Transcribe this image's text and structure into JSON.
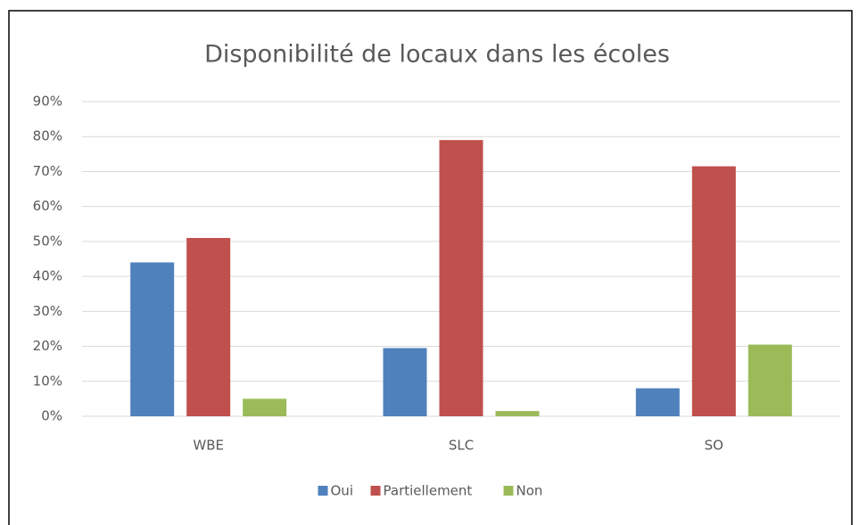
{
  "chart_data": {
    "type": "bar",
    "title": "Disponibilité de locaux dans les écoles",
    "categories": [
      "WBE",
      "SLC",
      "SO"
    ],
    "series": [
      {
        "name": "Oui",
        "color": "#4f81bd",
        "values": [
          44,
          19.5,
          8
        ]
      },
      {
        "name": "Partiellement",
        "color": "#c0504d",
        "values": [
          51,
          79,
          71.5
        ]
      },
      {
        "name": "Non",
        "color": "#9bbb59",
        "values": [
          5,
          1.5,
          20.5
        ]
      }
    ],
    "ylim": [
      0,
      90
    ],
    "yticks": [
      {
        "value": 0,
        "label": "0%"
      },
      {
        "value": 10,
        "label": "10%"
      },
      {
        "value": 20,
        "label": "20%"
      },
      {
        "value": 30,
        "label": "30%"
      },
      {
        "value": 40,
        "label": "40%"
      },
      {
        "value": 50,
        "label": "50%"
      },
      {
        "value": 60,
        "label": "60%"
      },
      {
        "value": 70,
        "label": "70%"
      },
      {
        "value": 80,
        "label": "80%"
      },
      {
        "value": 90,
        "label": "90%"
      }
    ],
    "grid": true,
    "legend": "bottom"
  }
}
